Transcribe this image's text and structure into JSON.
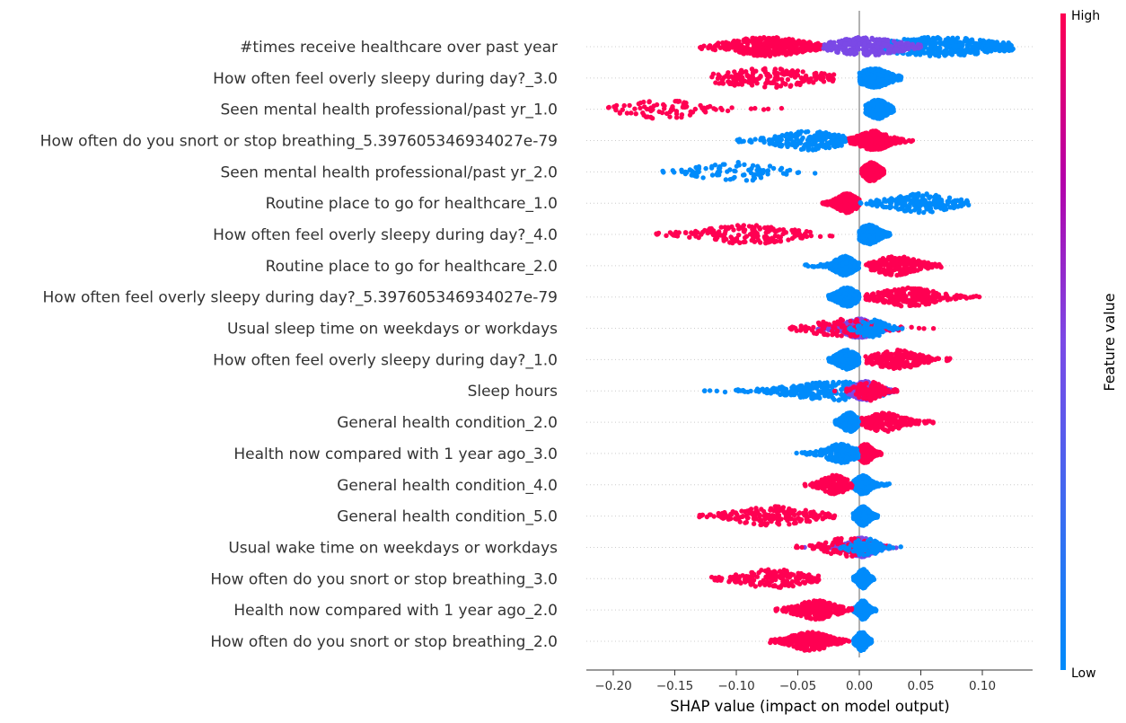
{
  "chart_data": {
    "type": "scatter",
    "subtype": "shap_beeswarm",
    "xlabel": "SHAP value (impact on model output)",
    "xlim": [
      -0.225,
      0.14
    ],
    "xticks": [
      -0.2,
      -0.15,
      -0.1,
      -0.05,
      0.0,
      0.05,
      0.1
    ],
    "xtick_labels": [
      "−0.20",
      "−0.15",
      "−0.10",
      "−0.05",
      "0.00",
      "0.05",
      "0.10"
    ],
    "colorbar": {
      "label": "Feature value",
      "high": "High",
      "low": "Low"
    },
    "colors": {
      "high": "#ff0052",
      "low": "#008bfb",
      "mid": "#7b49e6",
      "zero_line": "#999999",
      "row_grid": "#cccccc"
    },
    "features": [
      {
        "name": "#times receive healthcare over past year",
        "groups": [
          {
            "v": "low",
            "range": [
              0.02,
              0.125
            ],
            "center": 0.065,
            "width": 0.045,
            "n": 420
          },
          {
            "v": "high",
            "range": [
              -0.13,
              -0.02
            ],
            "center": -0.075,
            "width": 0.03,
            "n": 380
          },
          {
            "v": "mid",
            "range": [
              -0.03,
              0.05
            ],
            "center": 0.005,
            "width": 0.025,
            "n": 260
          }
        ]
      },
      {
        "name": "How often feel overly sleepy during day?_3.0",
        "groups": [
          {
            "v": "low",
            "range": [
              0.0,
              0.034
            ],
            "center": 0.012,
            "width": 0.012,
            "n": 420
          },
          {
            "v": "high",
            "range": [
              -0.12,
              -0.02
            ],
            "center": -0.075,
            "width": 0.04,
            "n": 170
          }
        ]
      },
      {
        "name": "Seen mental health professional/past yr_1.0",
        "groups": [
          {
            "v": "low",
            "range": [
              0.005,
              0.028
            ],
            "center": 0.015,
            "width": 0.008,
            "n": 420
          },
          {
            "v": "high",
            "range": [
              -0.205,
              -0.06
            ],
            "center": -0.16,
            "width": 0.03,
            "n": 90
          }
        ]
      },
      {
        "name": "How often do you snort or stop breathing_5.397605346934027e-79",
        "groups": [
          {
            "v": "high",
            "range": [
              -0.01,
              0.046
            ],
            "center": 0.012,
            "width": 0.012,
            "n": 400
          },
          {
            "v": "low",
            "range": [
              -0.1,
              -0.01
            ],
            "center": -0.04,
            "width": 0.025,
            "n": 200
          }
        ]
      },
      {
        "name": "Seen mental health professional/past yr_2.0",
        "groups": [
          {
            "v": "high",
            "range": [
              0.002,
              0.02
            ],
            "center": 0.01,
            "width": 0.006,
            "n": 400
          },
          {
            "v": "low",
            "range": [
              -0.16,
              -0.035
            ],
            "center": -0.1,
            "width": 0.03,
            "n": 90
          }
        ]
      },
      {
        "name": "Routine place to go for healthcare_1.0",
        "groups": [
          {
            "v": "high",
            "range": [
              -0.03,
              0.0
            ],
            "center": -0.01,
            "width": 0.008,
            "n": 400
          },
          {
            "v": "low",
            "range": [
              0.0,
              0.09
            ],
            "center": 0.05,
            "width": 0.025,
            "n": 200
          }
        ]
      },
      {
        "name": "How often feel overly sleepy during day?_4.0",
        "groups": [
          {
            "v": "low",
            "range": [
              0.0,
              0.025
            ],
            "center": 0.008,
            "width": 0.008,
            "n": 420
          },
          {
            "v": "high",
            "range": [
              -0.165,
              -0.015
            ],
            "center": -0.09,
            "width": 0.035,
            "n": 170
          }
        ]
      },
      {
        "name": "Routine place to go for healthcare_2.0",
        "groups": [
          {
            "v": "low",
            "range": [
              -0.045,
              0.0
            ],
            "center": -0.012,
            "width": 0.008,
            "n": 400
          },
          {
            "v": "high",
            "range": [
              0.005,
              0.068
            ],
            "center": 0.03,
            "width": 0.018,
            "n": 220
          }
        ]
      },
      {
        "name": "How often feel overly sleepy during day?_5.397605346934027e-79",
        "groups": [
          {
            "v": "low",
            "range": [
              -0.025,
              0.0
            ],
            "center": -0.01,
            "width": 0.008,
            "n": 400
          },
          {
            "v": "high",
            "range": [
              0.005,
              0.102
            ],
            "center": 0.04,
            "width": 0.022,
            "n": 260
          }
        ]
      },
      {
        "name": "Usual sleep time on weekdays or workdays",
        "groups": [
          {
            "v": "mid",
            "range": [
              -0.05,
              0.035
            ],
            "center": 0.0,
            "width": 0.012,
            "n": 380
          },
          {
            "v": "high",
            "range": [
              -0.06,
              0.065
            ],
            "center": -0.01,
            "width": 0.025,
            "n": 120
          },
          {
            "v": "low",
            "range": [
              -0.01,
              0.035
            ],
            "center": 0.01,
            "width": 0.01,
            "n": 90
          }
        ]
      },
      {
        "name": "How often feel overly sleepy during day?_1.0",
        "groups": [
          {
            "v": "low",
            "range": [
              -0.025,
              0.0
            ],
            "center": -0.01,
            "width": 0.008,
            "n": 400
          },
          {
            "v": "high",
            "range": [
              0.005,
              0.075
            ],
            "center": 0.03,
            "width": 0.018,
            "n": 220
          }
        ]
      },
      {
        "name": "Sleep hours",
        "groups": [
          {
            "v": "low",
            "range": [
              -0.145,
              0.025
            ],
            "center": -0.02,
            "width": 0.035,
            "n": 300
          },
          {
            "v": "mid",
            "range": [
              -0.01,
              0.03
            ],
            "center": 0.005,
            "width": 0.01,
            "n": 260
          },
          {
            "v": "high",
            "range": [
              -0.02,
              0.032
            ],
            "center": 0.008,
            "width": 0.01,
            "n": 120
          }
        ]
      },
      {
        "name": "General health condition_2.0",
        "groups": [
          {
            "v": "low",
            "range": [
              -0.02,
              0.0
            ],
            "center": -0.008,
            "width": 0.006,
            "n": 400
          },
          {
            "v": "high",
            "range": [
              0.002,
              0.06
            ],
            "center": 0.02,
            "width": 0.015,
            "n": 220
          }
        ]
      },
      {
        "name": "Health now compared with 1 year ago_3.0",
        "groups": [
          {
            "v": "high",
            "range": [
              0.0,
              0.018
            ],
            "center": 0.005,
            "width": 0.005,
            "n": 400
          },
          {
            "v": "low",
            "range": [
              -0.052,
              0.0
            ],
            "center": -0.015,
            "width": 0.012,
            "n": 180
          }
        ]
      },
      {
        "name": "General health condition_4.0",
        "groups": [
          {
            "v": "low",
            "range": [
              -0.005,
              0.025
            ],
            "center": 0.003,
            "width": 0.006,
            "n": 400
          },
          {
            "v": "high",
            "range": [
              -0.045,
              -0.005
            ],
            "center": -0.02,
            "width": 0.01,
            "n": 160
          }
        ]
      },
      {
        "name": "General health condition_5.0",
        "groups": [
          {
            "v": "low",
            "range": [
              -0.005,
              0.015
            ],
            "center": 0.003,
            "width": 0.005,
            "n": 400
          },
          {
            "v": "high",
            "range": [
              -0.14,
              -0.02
            ],
            "center": -0.07,
            "width": 0.03,
            "n": 180
          }
        ]
      },
      {
        "name": "Usual wake time on weekdays or workdays",
        "groups": [
          {
            "v": "mid",
            "range": [
              -0.05,
              0.03
            ],
            "center": 0.002,
            "width": 0.01,
            "n": 380
          },
          {
            "v": "high",
            "range": [
              -0.065,
              0.03
            ],
            "center": -0.01,
            "width": 0.018,
            "n": 110
          },
          {
            "v": "low",
            "range": [
              -0.03,
              0.035
            ],
            "center": 0.005,
            "width": 0.01,
            "n": 90
          }
        ]
      },
      {
        "name": "How often do you snort or stop breathing_3.0",
        "groups": [
          {
            "v": "low",
            "range": [
              -0.005,
              0.012
            ],
            "center": 0.003,
            "width": 0.004,
            "n": 400
          },
          {
            "v": "high",
            "range": [
              -0.12,
              -0.03
            ],
            "center": -0.07,
            "width": 0.025,
            "n": 170
          }
        ]
      },
      {
        "name": "Health now compared with 1 year ago_2.0",
        "groups": [
          {
            "v": "low",
            "range": [
              -0.005,
              0.014
            ],
            "center": 0.003,
            "width": 0.004,
            "n": 400
          },
          {
            "v": "high",
            "range": [
              -0.068,
              -0.005
            ],
            "center": -0.035,
            "width": 0.015,
            "n": 300
          }
        ]
      },
      {
        "name": "How often do you snort or stop breathing_2.0",
        "groups": [
          {
            "v": "low",
            "range": [
              -0.005,
              0.01
            ],
            "center": 0.002,
            "width": 0.004,
            "n": 400
          },
          {
            "v": "high",
            "range": [
              -0.075,
              -0.005
            ],
            "center": -0.04,
            "width": 0.015,
            "n": 300
          }
        ]
      }
    ]
  }
}
